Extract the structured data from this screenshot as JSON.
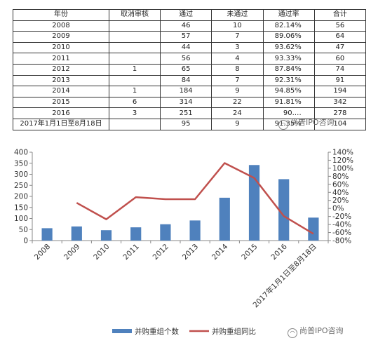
{
  "table": {
    "headers": [
      "年份",
      "取消审核",
      "通过",
      "未通过",
      "通过率",
      "合计"
    ],
    "rows": [
      [
        "2008",
        "",
        "46",
        "10",
        "82.14%",
        "56"
      ],
      [
        "2009",
        "",
        "57",
        "7",
        "89.06%",
        "64"
      ],
      [
        "2010",
        "",
        "44",
        "3",
        "93.62%",
        "47"
      ],
      [
        "2011",
        "",
        "56",
        "4",
        "93.33%",
        "60"
      ],
      [
        "2012",
        "1",
        "65",
        "8",
        "87.84%",
        "74"
      ],
      [
        "2013",
        "",
        "84",
        "7",
        "92.31%",
        "91"
      ],
      [
        "2014",
        "1",
        "184",
        "9",
        "94.85%",
        "194"
      ],
      [
        "2015",
        "6",
        "314",
        "22",
        "91.81%",
        "342"
      ],
      [
        "2016",
        "3",
        "251",
        "24",
        "90.…",
        "278"
      ],
      [
        "2017年1月1日至8月18日",
        "",
        "95",
        "9",
        "91.35%",
        "104"
      ]
    ]
  },
  "watermark": {
    "text": "尚普IPO咨询"
  },
  "chart_data": {
    "type": "bar",
    "categories": [
      "2008",
      "2009",
      "2010",
      "2011",
      "2012",
      "2013",
      "2014",
      "2015",
      "2016",
      "2017年1月1日至8月18日"
    ],
    "series": [
      {
        "name": "并购重组个数",
        "type": "bar",
        "axis": "left",
        "color": "#4f81bd",
        "values": [
          56,
          64,
          47,
          60,
          74,
          91,
          194,
          342,
          278,
          104
        ]
      },
      {
        "name": "并购重组同比",
        "type": "line",
        "axis": "right",
        "color": "#c0504d",
        "values": [
          null,
          14,
          -27,
          28,
          23,
          23,
          113,
          76,
          -19,
          -63
        ]
      }
    ],
    "ylim_left": [
      0,
      400
    ],
    "yticks_left": [
      "0",
      "50",
      "100",
      "150",
      "200",
      "250",
      "300",
      "350",
      "400"
    ],
    "ylim_right": [
      -80,
      140
    ],
    "yticks_right": [
      "-80%",
      "-60%",
      "-40%",
      "-20%",
      "0%",
      "20%",
      "40%",
      "60%",
      "80%",
      "100%",
      "120%",
      "140%"
    ],
    "legend": "bottom",
    "grid": false
  }
}
